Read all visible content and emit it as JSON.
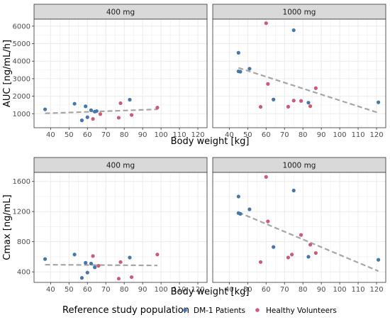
{
  "chart_data": [
    {
      "type": "scatter",
      "xlabel": "Body weight [kg]",
      "ylabel": "AUC [ng/mL/h]",
      "xlim": [
        31,
        125
      ],
      "ylim": [
        200,
        6400
      ],
      "x_ticks": [
        40,
        50,
        60,
        70,
        80,
        90,
        100,
        110,
        120
      ],
      "y_ticks": [
        1000,
        2000,
        3000,
        4000,
        5000,
        6000
      ],
      "grid": true,
      "panels": [
        {
          "label": "400 mg",
          "series": [
            {
              "name": "DM-1 Patients",
              "points": [
                [
                  37,
                  1250
                ],
                [
                  53,
                  1570
                ],
                [
                  57,
                  620
                ],
                [
                  59,
                  1420
                ],
                [
                  60,
                  800
                ],
                [
                  62,
                  1200
                ],
                [
                  64,
                  1120
                ],
                [
                  65,
                  1150
                ],
                [
                  83,
                  1800
                ]
              ]
            },
            {
              "name": "Healthy Volunteers",
              "points": [
                [
                  63,
                  700
                ],
                [
                  67,
                  980
                ],
                [
                  77,
                  770
                ],
                [
                  78,
                  1600
                ],
                [
                  84,
                  930
                ],
                [
                  98,
                  1350
                ]
              ]
            }
          ],
          "trend": [
            [
              37,
              1020
            ],
            [
              98,
              1250
            ]
          ]
        },
        {
          "label": "1000 mg",
          "series": [
            {
              "name": "DM-1 Patients",
              "points": [
                [
                  45,
                  4480
                ],
                [
                  45,
                  3420
                ],
                [
                  46,
                  3400
                ],
                [
                  51,
                  3570
                ],
                [
                  64,
                  1810
                ],
                [
                  75,
                  5770
                ],
                [
                  83,
                  1630
                ],
                [
                  121,
                  1650
                ]
              ]
            },
            {
              "name": "Healthy Volunteers",
              "points": [
                [
                  57,
                  1390
                ],
                [
                  60,
                  6170
                ],
                [
                  61,
                  2700
                ],
                [
                  72,
                  1400
                ],
                [
                  75,
                  1750
                ],
                [
                  79,
                  1730
                ],
                [
                  84,
                  1430
                ],
                [
                  87,
                  2460
                ]
              ]
            }
          ],
          "trend": [
            [
              45,
              3620
            ],
            [
              121,
              1050
            ]
          ]
        }
      ]
    },
    {
      "type": "scatter",
      "xlabel": "Body weight [kg]",
      "ylabel": "Cmax [ng/mL]",
      "xlim": [
        31,
        125
      ],
      "ylim": [
        260,
        1720
      ],
      "x_ticks": [
        40,
        50,
        60,
        70,
        80,
        90,
        100,
        110,
        120
      ],
      "y_ticks": [
        400,
        800,
        1200,
        1600
      ],
      "grid": true,
      "panels": [
        {
          "label": "400 mg",
          "series": [
            {
              "name": "DM-1 Patients",
              "points": [
                [
                  37,
                  570
                ],
                [
                  53,
                  630
                ],
                [
                  57,
                  320
                ],
                [
                  59,
                  520
                ],
                [
                  60,
                  390
                ],
                [
                  62,
                  510
                ],
                [
                  64,
                  460
                ],
                [
                  83,
                  590
                ]
              ]
            },
            {
              "name": "Healthy Volunteers",
              "points": [
                [
                  63,
                  610
                ],
                [
                  66,
                  480
                ],
                [
                  77,
                  310
                ],
                [
                  78,
                  530
                ],
                [
                  84,
                  330
                ],
                [
                  98,
                  630
                ]
              ]
            }
          ],
          "trend": [
            [
              37,
              495
            ],
            [
              98,
              485
            ]
          ]
        },
        {
          "label": "1000 mg",
          "series": [
            {
              "name": "DM-1 Patients",
              "points": [
                [
                  45,
                  1400
                ],
                [
                  45,
                  1180
                ],
                [
                  46,
                  1170
                ],
                [
                  51,
                  1230
                ],
                [
                  64,
                  730
                ],
                [
                  75,
                  1480
                ],
                [
                  83,
                  600
                ],
                [
                  121,
                  560
                ]
              ]
            },
            {
              "name": "Healthy Volunteers",
              "points": [
                [
                  57,
                  530
                ],
                [
                  60,
                  1660
                ],
                [
                  61,
                  1070
                ],
                [
                  72,
                  590
                ],
                [
                  74,
                  630
                ],
                [
                  79,
                  890
                ],
                [
                  84,
                  760
                ],
                [
                  87,
                  650
                ]
              ]
            }
          ],
          "trend": [
            [
              45,
              1190
            ],
            [
              121,
              410
            ]
          ]
        }
      ]
    }
  ],
  "legend": {
    "title": "Reference study population",
    "items": [
      {
        "label": "DM-1 Patients",
        "color": "#4477aa"
      },
      {
        "label": "Healthy Volunteers",
        "color": "#cc5b77"
      }
    ],
    "position": "bottom"
  },
  "colors": {
    "panel_bg": "#ffffff",
    "strip_bg": "#d9d9d9",
    "grid": "#ebebeb",
    "trend": "#a6a6a6",
    "frame": "#333333"
  }
}
